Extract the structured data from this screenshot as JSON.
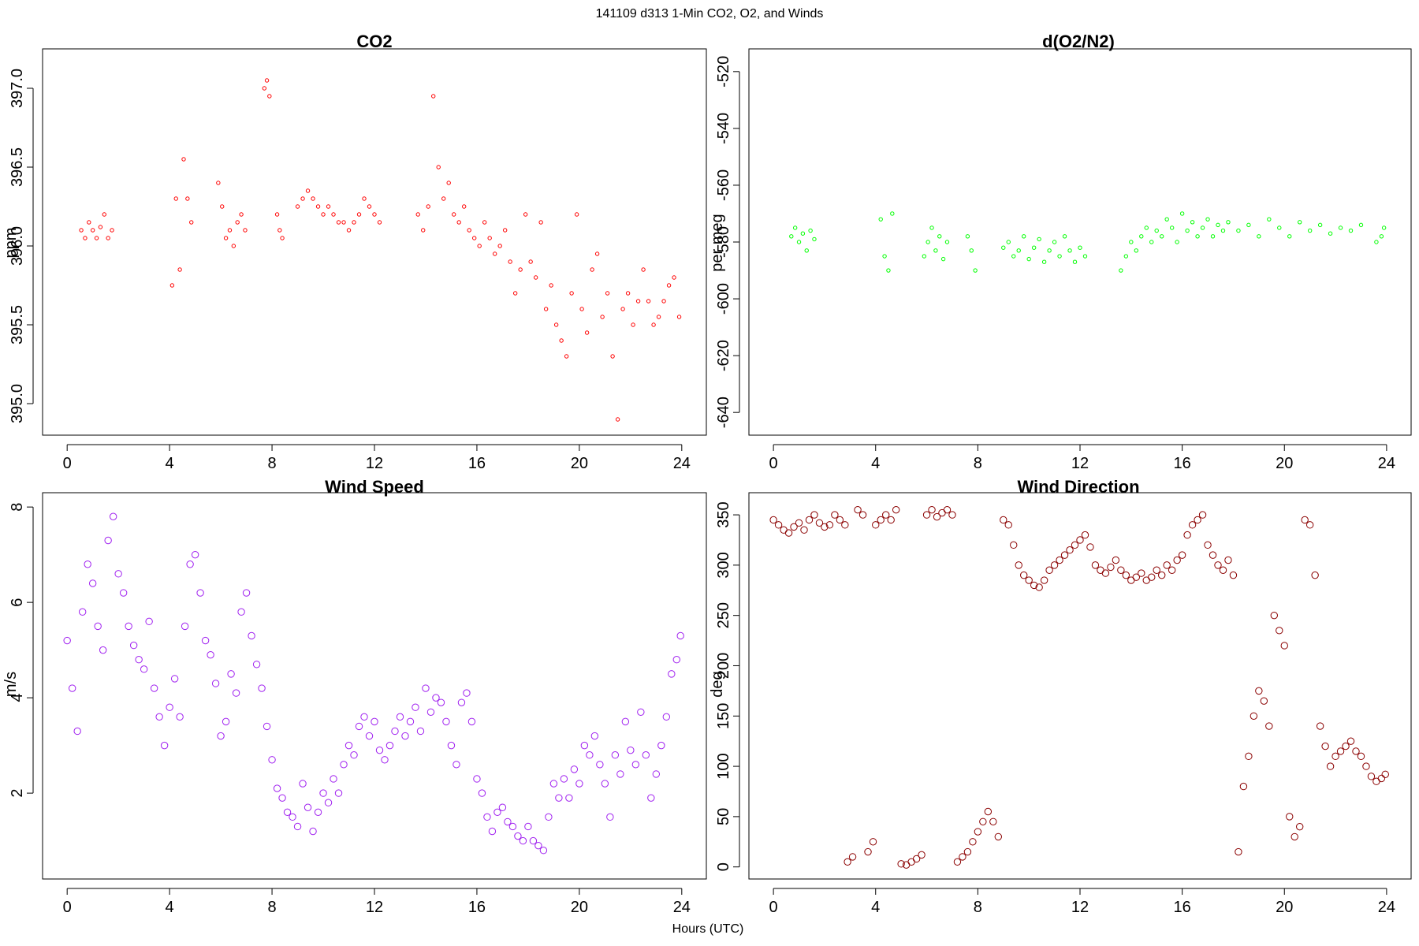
{
  "figure": {
    "suptitle": "141109   d313   1-Min CO2, O2, and Winds",
    "xlabel": "Hours (UTC)"
  },
  "chart_data": [
    {
      "type": "scatter",
      "title": "CO2",
      "xlabel": "",
      "ylabel": "ppm",
      "xlim": [
        -0.96,
        24.96
      ],
      "ylim": [
        394.8,
        397.25
      ],
      "xticks": [
        0,
        4,
        8,
        12,
        16,
        20,
        24
      ],
      "yticks": [
        395.0,
        395.5,
        396.0,
        396.5,
        397.0
      ],
      "ytick_labels": [
        "395.0",
        "395.5",
        "396.0",
        "396.5",
        "397.0"
      ],
      "color": "#ff0000",
      "marker_size": "small",
      "grid": false,
      "series": [
        {
          "x": [
            0.55,
            0.7,
            0.85,
            1.0,
            1.15,
            1.3,
            1.45,
            1.6,
            1.75,
            4.1,
            4.25,
            4.4,
            4.55,
            4.7,
            4.85,
            5.9,
            6.05,
            6.2,
            6.35,
            6.5,
            6.65,
            6.8,
            6.95,
            7.7,
            7.8,
            7.9,
            8.2,
            8.3,
            8.4,
            9.0,
            9.2,
            9.4,
            9.6,
            9.8,
            10.0,
            10.2,
            10.4,
            10.6,
            10.8,
            11.0,
            11.2,
            11.4,
            11.6,
            11.8,
            12.0,
            12.2,
            13.7,
            13.9,
            14.1,
            14.3,
            14.5,
            14.7,
            14.9,
            15.1,
            15.3,
            15.5,
            15.7,
            15.9,
            16.1,
            16.3,
            16.5,
            16.7,
            16.9,
            17.1,
            17.3,
            17.5,
            17.7,
            17.9,
            18.1,
            18.3,
            18.5,
            18.7,
            18.9,
            19.1,
            19.3,
            19.5,
            19.7,
            19.9,
            20.1,
            20.3,
            20.5,
            20.7,
            20.9,
            21.1,
            21.3,
            21.5,
            21.7,
            21.9,
            22.1,
            22.3,
            22.5,
            22.7,
            22.9,
            23.1,
            23.3,
            23.5,
            23.7,
            23.9
          ],
          "y": [
            396.1,
            396.05,
            396.15,
            396.1,
            396.05,
            396.12,
            396.2,
            396.05,
            396.1,
            395.75,
            396.3,
            395.85,
            396.55,
            396.3,
            396.15,
            396.4,
            396.25,
            396.05,
            396.1,
            396.0,
            396.15,
            396.2,
            396.1,
            397.0,
            397.05,
            396.95,
            396.2,
            396.1,
            396.05,
            396.25,
            396.3,
            396.35,
            396.3,
            396.25,
            396.2,
            396.25,
            396.2,
            396.15,
            396.15,
            396.1,
            396.15,
            396.2,
            396.3,
            396.25,
            396.2,
            396.15,
            396.2,
            396.1,
            396.25,
            396.95,
            396.5,
            396.3,
            396.4,
            396.2,
            396.15,
            396.25,
            396.1,
            396.05,
            396.0,
            396.15,
            396.05,
            395.95,
            396.0,
            396.1,
            395.9,
            395.7,
            395.85,
            396.2,
            395.9,
            395.8,
            396.15,
            395.6,
            395.75,
            395.5,
            395.4,
            395.3,
            395.7,
            396.2,
            395.6,
            395.45,
            395.85,
            395.95,
            395.55,
            395.7,
            395.3,
            394.9,
            395.6,
            395.7,
            395.5,
            395.65,
            395.85,
            395.65,
            395.5,
            395.55,
            395.65,
            395.75,
            395.8,
            395.55
          ]
        }
      ]
    },
    {
      "type": "scatter",
      "title": "d(O2/N2)",
      "xlabel": "",
      "ylabel": "per meg",
      "xlim": [
        -0.96,
        24.96
      ],
      "ylim": [
        -648,
        -512
      ],
      "xticks": [
        0,
        4,
        8,
        12,
        16,
        20,
        24
      ],
      "yticks": [
        -640,
        -620,
        -600,
        -580,
        -560,
        -540,
        -520
      ],
      "ytick_labels": [
        "-640",
        "-620",
        "-600",
        "-580",
        "-560",
        "-540",
        "-520"
      ],
      "color": "#00ff00",
      "marker_size": "small",
      "grid": false,
      "series": [
        {
          "x": [
            0.7,
            0.85,
            1.0,
            1.15,
            1.3,
            1.45,
            1.6,
            4.2,
            4.35,
            4.5,
            4.65,
            5.9,
            6.05,
            6.2,
            6.35,
            6.5,
            6.65,
            6.8,
            7.6,
            7.75,
            7.9,
            9.0,
            9.2,
            9.4,
            9.6,
            9.8,
            10.0,
            10.2,
            10.4,
            10.6,
            10.8,
            11.0,
            11.2,
            11.4,
            11.6,
            11.8,
            12.0,
            12.2,
            13.6,
            13.8,
            14.0,
            14.2,
            14.4,
            14.6,
            14.8,
            15.0,
            15.2,
            15.4,
            15.6,
            15.8,
            16.0,
            16.2,
            16.4,
            16.6,
            16.8,
            17.0,
            17.2,
            17.4,
            17.6,
            17.8,
            18.2,
            18.6,
            19.0,
            19.4,
            19.8,
            20.2,
            20.6,
            21.0,
            21.4,
            21.8,
            22.2,
            22.6,
            23.0,
            23.6,
            23.8,
            23.9
          ],
          "y": [
            -578,
            -575,
            -580,
            -577,
            -583,
            -576,
            -579,
            -572,
            -585,
            -590,
            -570,
            -585,
            -580,
            -575,
            -583,
            -578,
            -586,
            -580,
            -578,
            -583,
            -590,
            -582,
            -580,
            -585,
            -583,
            -578,
            -586,
            -582,
            -579,
            -587,
            -583,
            -580,
            -585,
            -578,
            -583,
            -587,
            -582,
            -585,
            -590,
            -585,
            -580,
            -583,
            -578,
            -575,
            -580,
            -576,
            -578,
            -572,
            -575,
            -580,
            -570,
            -576,
            -573,
            -578,
            -575,
            -572,
            -578,
            -574,
            -576,
            -573,
            -576,
            -574,
            -578,
            -572,
            -575,
            -578,
            -573,
            -576,
            -574,
            -577,
            -575,
            -576,
            -574,
            -580,
            -578,
            -575
          ]
        }
      ]
    },
    {
      "type": "scatter",
      "title": "Wind Speed",
      "xlabel": "",
      "ylabel": "m/s",
      "xlim": [
        -0.96,
        24.96
      ],
      "ylim": [
        0.2,
        8.3
      ],
      "xticks": [
        0,
        4,
        8,
        12,
        16,
        20,
        24
      ],
      "yticks": [
        2,
        4,
        6,
        8
      ],
      "ytick_labels": [
        "2",
        "4",
        "6",
        "8"
      ],
      "color": "#a020f0",
      "marker_size": "large",
      "grid": false,
      "series": [
        {
          "x": [
            0.0,
            0.2,
            0.4,
            0.6,
            0.8,
            1.0,
            1.2,
            1.4,
            1.6,
            1.8,
            2.0,
            2.2,
            2.4,
            2.6,
            2.8,
            3.0,
            3.2,
            3.4,
            3.6,
            3.8,
            4.0,
            4.2,
            4.4,
            4.6,
            4.8,
            5.0,
            5.2,
            5.4,
            5.6,
            5.8,
            6.0,
            6.2,
            6.4,
            6.6,
            6.8,
            7.0,
            7.2,
            7.4,
            7.6,
            7.8,
            8.0,
            8.2,
            8.4,
            8.6,
            8.8,
            9.0,
            9.2,
            9.4,
            9.6,
            9.8,
            10.0,
            10.2,
            10.4,
            10.6,
            10.8,
            11.0,
            11.2,
            11.4,
            11.6,
            11.8,
            12.0,
            12.2,
            12.4,
            12.6,
            12.8,
            13.0,
            13.2,
            13.4,
            13.6,
            13.8,
            14.0,
            14.2,
            14.4,
            14.6,
            14.8,
            15.0,
            15.2,
            15.4,
            15.6,
            15.8,
            16.0,
            16.2,
            16.4,
            16.6,
            16.8,
            17.0,
            17.2,
            17.4,
            17.6,
            17.8,
            18.0,
            18.2,
            18.4,
            18.6,
            18.8,
            19.0,
            19.2,
            19.4,
            19.6,
            19.8,
            20.0,
            20.2,
            20.4,
            20.6,
            20.8,
            21.0,
            21.2,
            21.4,
            21.6,
            21.8,
            22.0,
            22.2,
            22.4,
            22.6,
            22.8,
            23.0,
            23.2,
            23.4,
            23.6,
            23.8,
            23.95
          ],
          "y": [
            5.2,
            4.2,
            3.3,
            5.8,
            6.8,
            6.4,
            5.5,
            5.0,
            7.3,
            7.8,
            6.6,
            6.2,
            5.5,
            5.1,
            4.8,
            4.6,
            5.6,
            4.2,
            3.6,
            3.0,
            3.8,
            4.4,
            3.6,
            5.5,
            6.8,
            7.0,
            6.2,
            5.2,
            4.9,
            4.3,
            3.2,
            3.5,
            4.5,
            4.1,
            5.8,
            6.2,
            5.3,
            4.7,
            4.2,
            3.4,
            2.7,
            2.1,
            1.9,
            1.6,
            1.5,
            1.3,
            2.2,
            1.7,
            1.2,
            1.6,
            2.0,
            1.8,
            2.3,
            2.0,
            2.6,
            3.0,
            2.8,
            3.4,
            3.6,
            3.2,
            3.5,
            2.9,
            2.7,
            3.0,
            3.3,
            3.6,
            3.2,
            3.5,
            3.8,
            3.3,
            4.2,
            3.7,
            4.0,
            3.9,
            3.5,
            3.0,
            2.6,
            3.9,
            4.1,
            3.5,
            2.3,
            2.0,
            1.5,
            1.2,
            1.6,
            1.7,
            1.4,
            1.3,
            1.1,
            1.0,
            1.3,
            1.0,
            0.9,
            0.8,
            1.5,
            2.2,
            1.9,
            2.3,
            1.9,
            2.5,
            2.2,
            3.0,
            2.8,
            3.2,
            2.6,
            2.2,
            1.5,
            2.8,
            2.4,
            3.5,
            2.9,
            2.6,
            3.7,
            2.8,
            1.9,
            2.4,
            3.0,
            3.6,
            4.5,
            4.8,
            5.3
          ]
        }
      ]
    },
    {
      "type": "scatter",
      "title": "Wind Direction",
      "xlabel": "",
      "ylabel": "deg",
      "xlim": [
        -0.96,
        24.96
      ],
      "ylim": [
        -12,
        372
      ],
      "xticks": [
        0,
        4,
        8,
        12,
        16,
        20,
        24
      ],
      "yticks": [
        0,
        50,
        100,
        150,
        200,
        250,
        300,
        350
      ],
      "ytick_labels": [
        "0",
        "50",
        "100",
        "150",
        "200",
        "250",
        "300",
        "350"
      ],
      "color": "#8b0000",
      "marker_size": "large",
      "grid": false,
      "series": [
        {
          "x": [
            0.0,
            0.2,
            0.4,
            0.6,
            0.8,
            1.0,
            1.2,
            1.4,
            1.6,
            1.8,
            2.0,
            2.2,
            2.4,
            2.6,
            2.8,
            2.9,
            3.1,
            3.3,
            3.5,
            3.7,
            3.9,
            4.0,
            4.2,
            4.4,
            4.6,
            4.8,
            5.0,
            5.2,
            5.4,
            5.6,
            5.8,
            6.0,
            6.2,
            6.4,
            6.6,
            6.8,
            7.0,
            7.2,
            7.4,
            7.6,
            7.8,
            8.0,
            8.2,
            8.4,
            8.6,
            8.8,
            9.0,
            9.2,
            9.4,
            9.6,
            9.8,
            10.0,
            10.2,
            10.4,
            10.6,
            10.8,
            11.0,
            11.2,
            11.4,
            11.6,
            11.8,
            12.0,
            12.2,
            12.4,
            12.6,
            12.8,
            13.0,
            13.2,
            13.4,
            13.6,
            13.8,
            14.0,
            14.2,
            14.4,
            14.6,
            14.8,
            15.0,
            15.2,
            15.4,
            15.6,
            15.8,
            16.0,
            16.2,
            16.4,
            16.6,
            16.8,
            17.0,
            17.2,
            17.4,
            17.6,
            17.8,
            18.0,
            18.2,
            18.4,
            18.6,
            18.8,
            19.0,
            19.2,
            19.4,
            19.6,
            19.8,
            20.0,
            20.2,
            20.4,
            20.6,
            20.8,
            21.0,
            21.2,
            21.4,
            21.6,
            21.8,
            22.0,
            22.2,
            22.4,
            22.6,
            22.8,
            23.0,
            23.2,
            23.4,
            23.6,
            23.8,
            23.95
          ],
          "y": [
            345,
            340,
            335,
            332,
            338,
            342,
            335,
            345,
            350,
            342,
            338,
            340,
            350,
            345,
            340,
            5,
            10,
            355,
            350,
            15,
            25,
            340,
            345,
            350,
            345,
            355,
            3,
            2,
            5,
            8,
            12,
            350,
            355,
            348,
            352,
            355,
            350,
            5,
            10,
            15,
            25,
            35,
            45,
            55,
            45,
            30,
            345,
            340,
            320,
            300,
            290,
            285,
            280,
            278,
            285,
            295,
            300,
            305,
            310,
            315,
            320,
            325,
            330,
            318,
            300,
            295,
            292,
            298,
            305,
            295,
            290,
            285,
            288,
            292,
            285,
            288,
            295,
            290,
            300,
            295,
            305,
            310,
            330,
            340,
            345,
            350,
            320,
            310,
            300,
            295,
            305,
            290,
            15,
            80,
            110,
            150,
            175,
            165,
            140,
            250,
            235,
            220,
            50,
            30,
            40,
            345,
            340,
            290,
            140,
            120,
            100,
            110,
            115,
            120,
            125,
            115,
            110,
            100,
            90,
            85,
            88,
            92
          ]
        }
      ]
    }
  ]
}
